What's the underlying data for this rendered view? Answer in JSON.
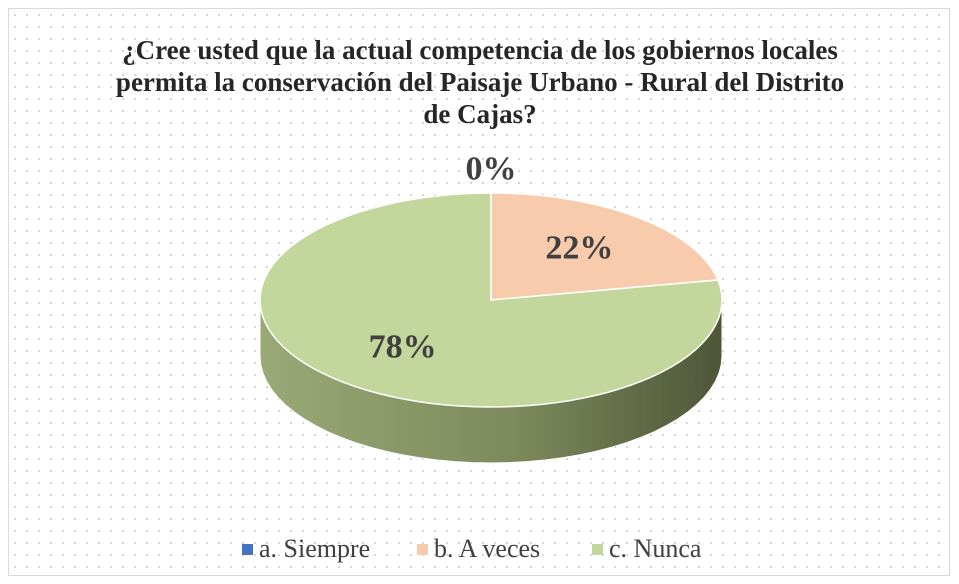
{
  "chart_data": {
    "type": "pie",
    "title": "¿Cree usted que la actual competencia de los gobiernos locales permita la conservación del Paisaje Urbano - Rural del Distrito de Cajas?",
    "categories": [
      "a. Siempre",
      "b. A veces",
      "c. Nunca"
    ],
    "values": [
      0,
      22,
      78
    ],
    "value_labels": [
      "0%",
      "22%",
      "78%"
    ],
    "colors": [
      "#4472c4",
      "#f8cbad",
      "#c3d69b"
    ],
    "legend": "bottom"
  }
}
